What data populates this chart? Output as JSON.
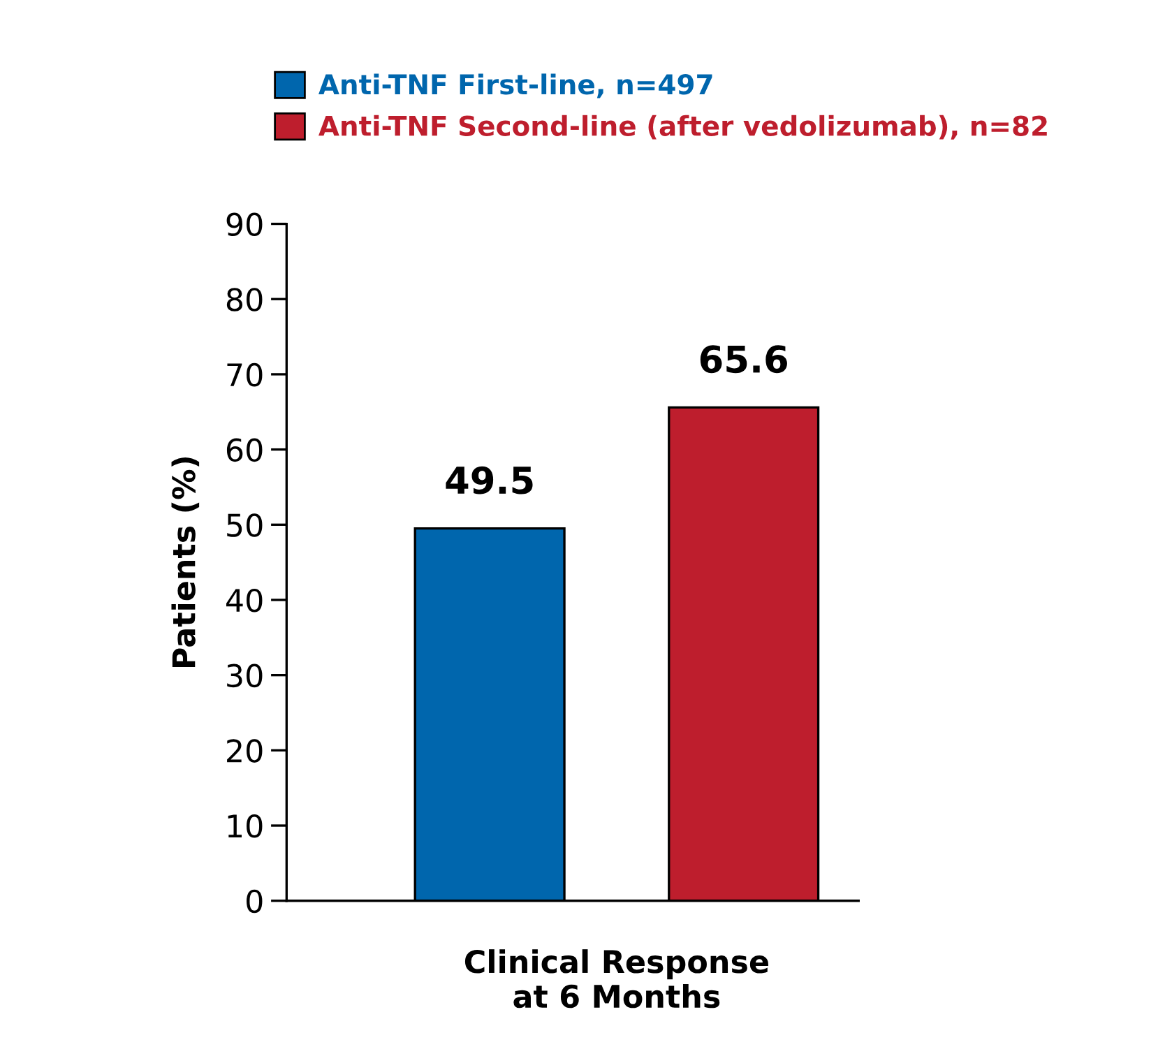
{
  "chart_data": {
    "type": "bar",
    "ylabel": "Patients (%)",
    "categories": [
      "Clinical Response\nat 6 Months"
    ],
    "series": [
      {
        "name": "Anti-TNF First-line, n=497",
        "color": "#0066ad",
        "values": [
          49.5
        ]
      },
      {
        "name": "Anti-TNF Second-line (after vedolizumab), n=82",
        "color": "#be1e2d",
        "values": [
          65.6
        ]
      }
    ],
    "ylim": [
      0,
      90
    ],
    "yticks": [
      0,
      10,
      20,
      30,
      40,
      50,
      60,
      70,
      80,
      90
    ],
    "data_labels": true,
    "legend": "top",
    "grid": false
  }
}
